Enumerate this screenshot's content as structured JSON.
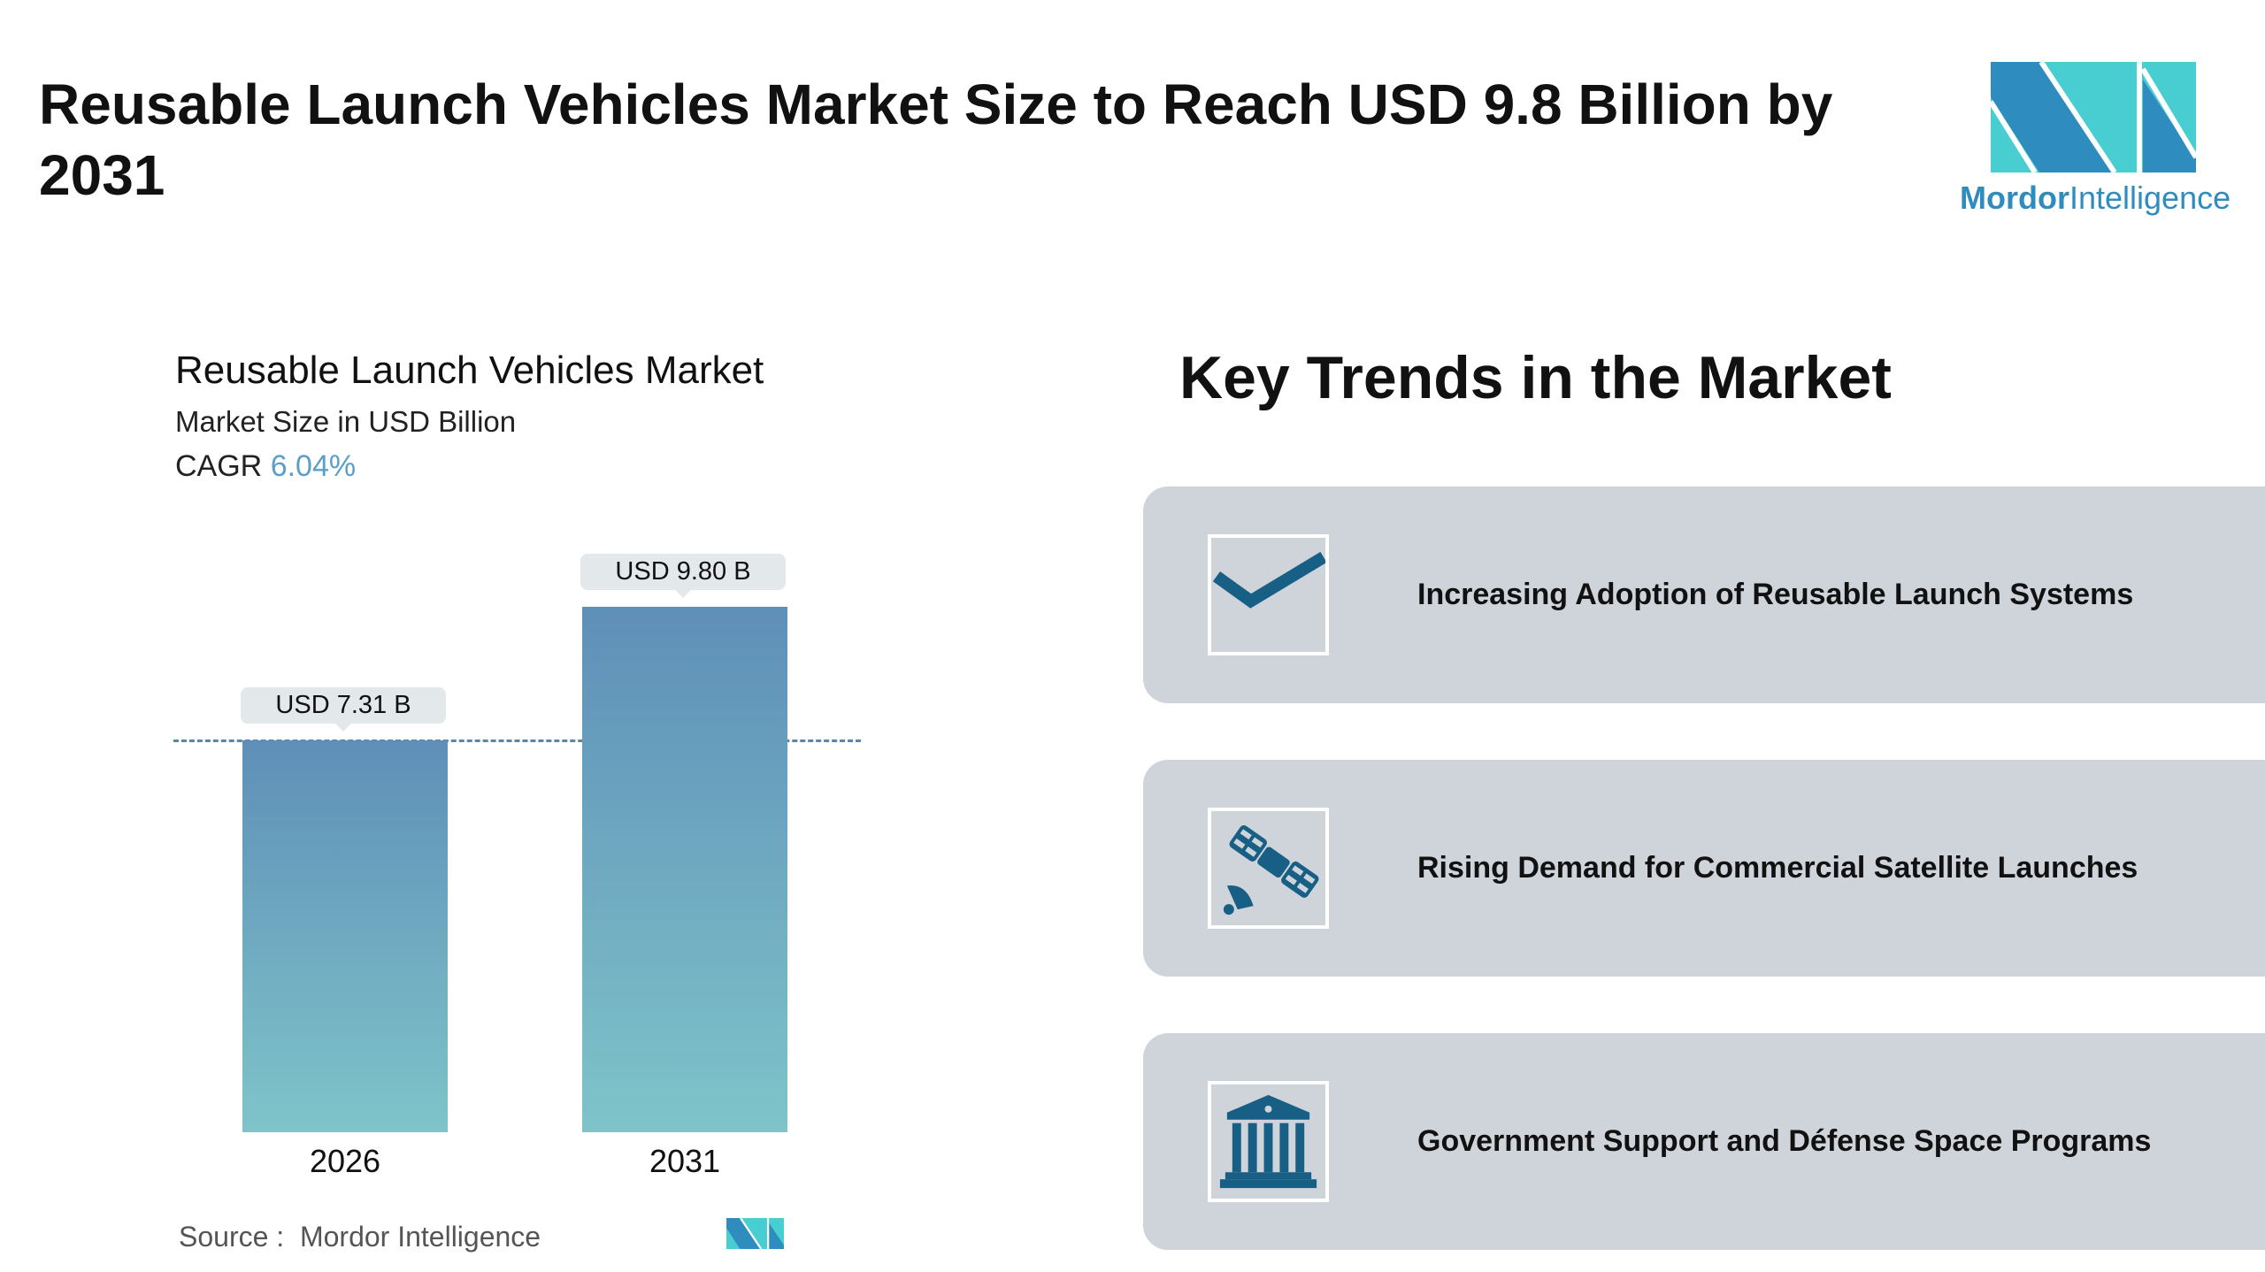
{
  "header": {
    "title": "Reusable Launch Vehicles Market Size to Reach USD 9.8 Billion by 2031"
  },
  "logo": {
    "brand_bold": "Mordor",
    "brand_light": "Intelligence",
    "colors": {
      "dark": "#2e8cbf",
      "light": "#48cdd0"
    }
  },
  "chart_data": {
    "type": "bar",
    "title": "Reusable Launch Vehicles Market",
    "subtitle": "Market Size in USD Billion",
    "cagr_label": "CAGR",
    "cagr_value": "6.04%",
    "categories": [
      "2026",
      "2031"
    ],
    "values": [
      7.31,
      9.8
    ],
    "data_labels": [
      "USD 7.31 B",
      "USD 9.80 B"
    ],
    "ylim": [
      0,
      9.8
    ],
    "reference_line": 7.31,
    "grid": false,
    "colors": {
      "bar_top": "#5f8fb8",
      "bar_bottom": "#7ec4c9"
    }
  },
  "source": {
    "label": "Source :",
    "value": "Mordor Intelligence"
  },
  "trends": {
    "heading": "Key Trends in the Market",
    "items": [
      {
        "icon": "checkmark-icon",
        "label": "Increasing Adoption of Reusable Launch Systems"
      },
      {
        "icon": "satellite-icon",
        "label": "Rising Demand for Commercial Satellite Launches"
      },
      {
        "icon": "government-building-icon",
        "label": "Government Support and Défense Space Programs"
      }
    ],
    "colors": {
      "card": "#cfd4db",
      "icon": "#175f85"
    }
  }
}
